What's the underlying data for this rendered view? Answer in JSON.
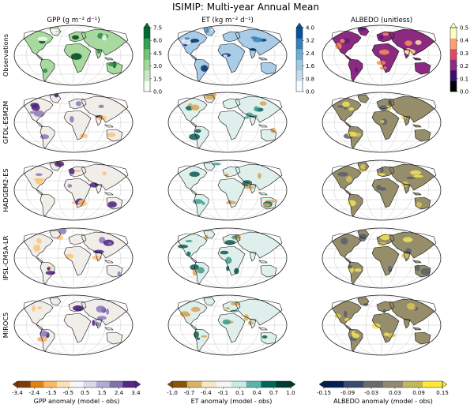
{
  "title": "ISIMIP: Multi-year Annual Mean",
  "columns": [
    {
      "label": "GPP (g m⁻² d⁻¹)"
    },
    {
      "label": "ET (kg m⁻² d⁻¹)"
    },
    {
      "label": "ALBEDO (unitless)"
    }
  ],
  "rows": [
    "Observations",
    "GFDL-ESM2M",
    "HADGEM2-ES",
    "IPSL-CM5A-LR",
    "MIROC5"
  ],
  "obs_colorbars": [
    {
      "ticks": [
        "7.5",
        "6.0",
        "4.5",
        "3.0",
        "1.5",
        "0.0"
      ],
      "colors": [
        "#f7fcf5",
        "#c7e9c0",
        "#a1d99b",
        "#74c476",
        "#31a354",
        "#006d2c"
      ]
    },
    {
      "ticks": [
        "4.0",
        "3.2",
        "2.4",
        "1.6",
        "0.8",
        "0.0"
      ],
      "colors": [
        "#f7fbff",
        "#c6dbef",
        "#9ecae1",
        "#6baed6",
        "#3182bd",
        "#08519c"
      ]
    },
    {
      "ticks": [
        "0.5",
        "0.4",
        "0.3",
        "0.2",
        "0.1",
        "0.0"
      ],
      "colors": [
        "#000004",
        "#3b0f70",
        "#8c2981",
        "#de4968",
        "#fe9f6d",
        "#fcfdbf"
      ]
    }
  ],
  "anomaly_colorbars": [
    {
      "ticks": [
        "-3.4",
        "-2.4",
        "-1.5",
        "-0.5",
        "0.5",
        "1.5",
        "2.4",
        "3.4"
      ],
      "label": "GPP anomaly (model - obs)",
      "colors": [
        "#7f3b08",
        "#e08214",
        "#fdb863",
        "#fee0b6",
        "#f7f7f7",
        "#d8daeb",
        "#b2abd2",
        "#8073ac",
        "#542788"
      ]
    },
    {
      "ticks": [
        "-1.0",
        "-0.7",
        "-0.4",
        "-0.1",
        "0.1",
        "0.4",
        "0.7",
        "1.0"
      ],
      "label": "ET anomaly (model - obs)",
      "colors": [
        "#8c510a",
        "#d8b365",
        "#f6e8c3",
        "#f5f5f5",
        "#c7eae5",
        "#5ab4ac",
        "#01665e",
        "#003c30"
      ]
    },
    {
      "ticks": [
        "-0.15",
        "-0.09",
        "-0.03",
        "0.03",
        "0.09",
        "0.15"
      ],
      "label": "ALBEDO anomaly (model - obs)",
      "colors": [
        "#00204d",
        "#3a4a6b",
        "#6b6b6b",
        "#8f8a70",
        "#c3b65b",
        "#fee838"
      ]
    }
  ],
  "map_palettes": {
    "gpp_obs": {
      "land": "#a8d99f",
      "low": "#f1f9ee",
      "high": "#238b45",
      "peak": "#00441b"
    },
    "et_obs": {
      "land": "#a9cde6",
      "low": "#eef5fc",
      "high": "#3182bd",
      "peak": "#08306b"
    },
    "albedo_obs": {
      "land": "#8c2981",
      "low": "#5a1a7a",
      "high": "#f88e58",
      "peak": "#fde3a7"
    },
    "gpp_anom": {
      "land": "#f1eeea",
      "low": "#fdc27a",
      "high": "#8b78b8",
      "peak": "#4a1f7d"
    },
    "et_anom": {
      "land": "#dff0ec",
      "low": "#d8a657",
      "high": "#3f9c92",
      "peak": "#0b5a52"
    },
    "albedo_anom": {
      "land": "#968e6a",
      "low": "#5a5f6d",
      "high": "#d6c35a",
      "peak": "#f2e35a"
    }
  }
}
